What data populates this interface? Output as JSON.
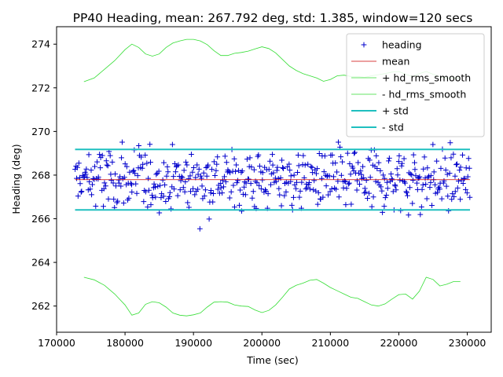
{
  "chart_data": {
    "type": "scatter",
    "title": "PP40 Heading, mean: 267.792 deg, std: 1.385, window=120 secs",
    "xlabel": "Time (sec)",
    "ylabel": "Heading (deg)",
    "xlim": [
      170000,
      233500
    ],
    "ylim": [
      260.8,
      274.8
    ],
    "xticks": [
      170000,
      180000,
      190000,
      200000,
      210000,
      220000,
      230000
    ],
    "xtick_labels": [
      "170000",
      "180000",
      "190000",
      "200000",
      "210000",
      "220000",
      "230000"
    ],
    "yticks": [
      262,
      264,
      266,
      268,
      270,
      272,
      274
    ],
    "ytick_labels": [
      "262",
      "264",
      "266",
      "268",
      "270",
      "272",
      "274"
    ],
    "legend_position": "top-right",
    "legend": [
      {
        "label": "heading",
        "color": "#0000cc",
        "style": "marker-plus"
      },
      {
        "label": "mean",
        "color": "#cc0000",
        "style": "line-thin"
      },
      {
        "label": "+ hd_rms_smooth",
        "color": "#33dd33",
        "style": "line-thin"
      },
      {
        "label": "- hd_rms_smooth",
        "color": "#33dd33",
        "style": "line-thin"
      },
      {
        "label": "+ std",
        "color": "#1fbfbf",
        "style": "line-thick"
      },
      {
        "label": "- std",
        "color": "#1fbfbf",
        "style": "line-thick"
      }
    ],
    "mean": 267.792,
    "std": 1.385,
    "plus_std": 269.177,
    "minus_std": 266.407,
    "x_range": [
      172700,
      230400
    ],
    "rms_smooth": {
      "x": [
        174000,
        175500,
        177000,
        178500,
        180000,
        181000,
        182000,
        183000,
        184000,
        185000,
        186000,
        187000,
        188000,
        189000,
        190000,
        191000,
        192000,
        193000,
        194000,
        195000,
        196000,
        197000,
        198000,
        199000,
        200000,
        201000,
        202000,
        203000,
        204000,
        205000,
        206000,
        207000,
        208000,
        209000,
        210000,
        211000,
        212000,
        213000,
        214000,
        215000,
        216000,
        217000,
        218000,
        219000,
        220000,
        221000,
        222000,
        223000,
        224000,
        225000,
        226000,
        227000,
        228000,
        229000
      ],
      "plus": [
        272.28,
        272.45,
        272.85,
        273.25,
        273.75,
        274.0,
        273.85,
        273.55,
        273.45,
        273.55,
        273.85,
        274.05,
        274.15,
        274.22,
        274.22,
        274.15,
        273.98,
        273.7,
        273.48,
        273.48,
        273.58,
        273.62,
        273.68,
        273.78,
        273.88,
        273.8,
        273.6,
        273.3,
        273.0,
        272.8,
        272.65,
        272.55,
        272.45,
        272.3,
        272.38,
        272.55,
        272.58,
        272.52,
        272.52,
        272.48,
        272.55,
        272.6,
        272.65,
        272.72,
        272.75,
        272.62,
        272.52,
        272.65,
        272.75,
        272.62,
        272.5,
        272.45,
        272.45,
        272.45
      ],
      "minus": [
        263.32,
        263.2,
        262.95,
        262.55,
        262.05,
        261.58,
        261.68,
        262.08,
        262.2,
        262.15,
        261.95,
        261.68,
        261.58,
        261.55,
        261.6,
        261.68,
        261.95,
        262.18,
        262.2,
        262.18,
        262.05,
        262.0,
        261.98,
        261.82,
        261.7,
        261.8,
        262.05,
        262.4,
        262.78,
        262.95,
        263.05,
        263.18,
        263.22,
        263.05,
        262.85,
        262.7,
        262.55,
        262.4,
        262.35,
        262.2,
        262.05,
        262.0,
        262.1,
        262.32,
        262.52,
        262.55,
        262.32,
        262.68,
        263.32,
        263.22,
        262.92,
        263.0,
        263.12,
        263.12
      ]
    }
  }
}
